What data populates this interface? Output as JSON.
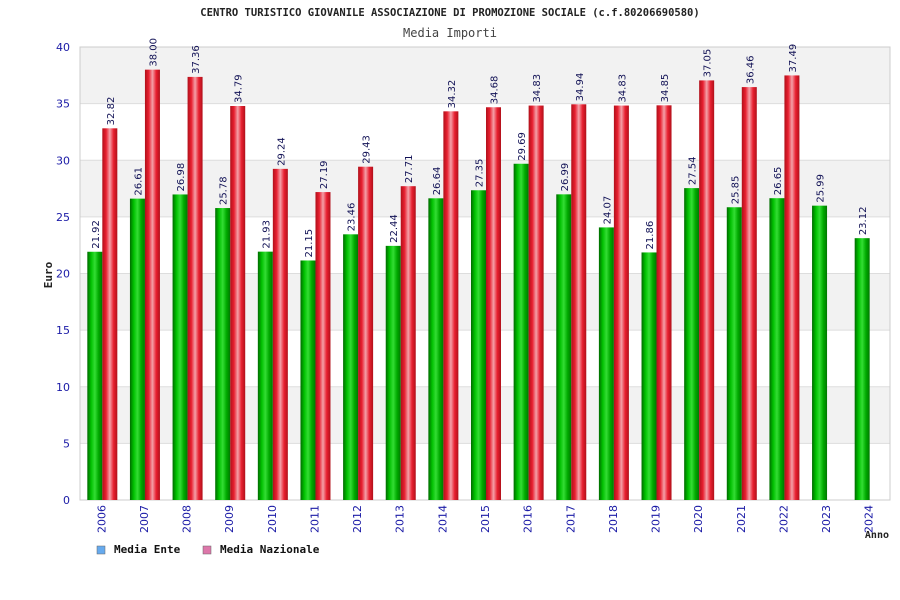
{
  "chart_data": {
    "type": "bar",
    "title": "CENTRO TURISTICO GIOVANILE ASSOCIAZIONE DI PROMOZIONE SOCIALE (c.f.80206690580)",
    "subtitle": "Media Importi",
    "ylabel": "Euro",
    "xlabel": "Anno",
    "ylim": [
      0,
      40
    ],
    "yticks": [
      0,
      5,
      10,
      15,
      20,
      25,
      30,
      35,
      40
    ],
    "categories": [
      "2006",
      "2007",
      "2008",
      "2009",
      "2010",
      "2011",
      "2012",
      "2013",
      "2014",
      "2015",
      "2016",
      "2017",
      "2018",
      "2019",
      "2020",
      "2021",
      "2022",
      "2023",
      "2024"
    ],
    "series": [
      {
        "name": "Media Ente",
        "color": "#00aa00",
        "legend_color": "#66aaee",
        "values": [
          21.92,
          26.61,
          26.98,
          25.78,
          21.93,
          21.15,
          23.46,
          22.44,
          26.64,
          27.35,
          29.69,
          26.99,
          24.07,
          21.86,
          27.54,
          25.85,
          26.65,
          25.99,
          23.12
        ],
        "labels": [
          "21.92",
          "26.61",
          "26.98",
          "25.78",
          "21.93",
          "21.15",
          "23.46",
          "22.44",
          "26.64",
          "27.35",
          "29.69",
          "26.99",
          "24.07",
          "21.86",
          "27.54",
          "25.85",
          "26.65",
          "25.99",
          "23.12"
        ]
      },
      {
        "name": "Media Nazionale",
        "color": "#e0202a",
        "legend_color": "#dd77aa",
        "values": [
          32.82,
          38.0,
          37.36,
          34.79,
          29.24,
          27.19,
          29.43,
          27.71,
          34.32,
          34.68,
          34.83,
          34.94,
          34.83,
          34.85,
          37.05,
          36.46,
          37.49,
          null,
          null
        ],
        "labels": [
          "32.82",
          "38.00",
          "37.36",
          "34.79",
          "29.24",
          "27.19",
          "29.43",
          "27.71",
          "34.32",
          "34.68",
          "34.83",
          "34.94",
          "34.83",
          "34.85",
          "37.05",
          "36.46",
          "37.49",
          null,
          null
        ]
      }
    ],
    "grid": true,
    "legend_position": "bottom-left"
  }
}
